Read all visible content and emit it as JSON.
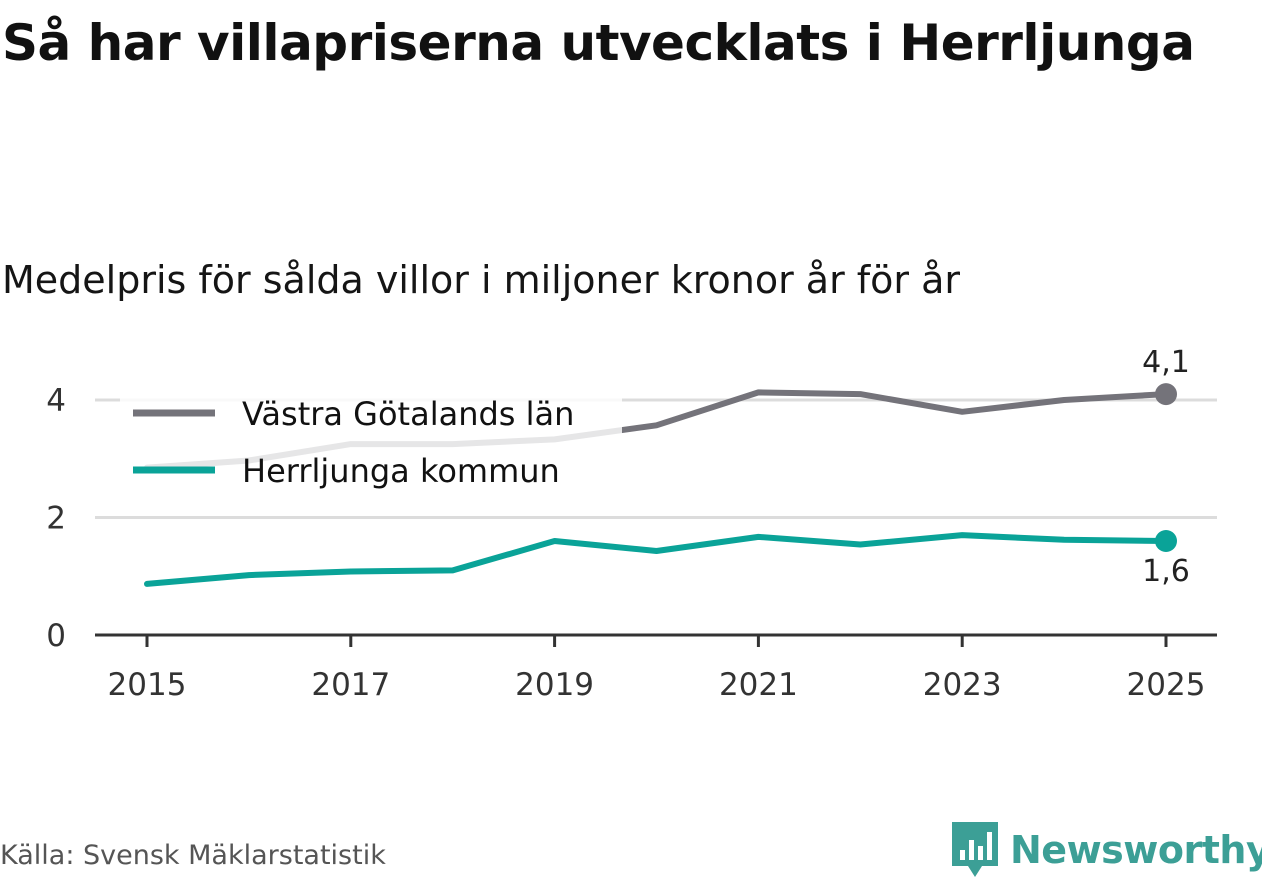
{
  "title": "Så har villapriserna utvecklats i Herrljunga",
  "subtitle": "Medelpris för sålda villor i miljoner kronor år för år",
  "source": "Källa: Svensk Mäklarstatistik",
  "brand": {
    "name": "Newsworthy",
    "icon": "newsworthy-logo-icon",
    "color": "#3c9f96"
  },
  "chart_data": {
    "type": "line",
    "title": "Så har villapriserna utvecklats i Herrljunga",
    "subtitle": "Medelpris för sålda villor i miljoner kronor år för år",
    "xlabel": "",
    "ylabel": "",
    "x": [
      2015,
      2016,
      2017,
      2018,
      2019,
      2020,
      2021,
      2022,
      2023,
      2024,
      2025
    ],
    "x_ticks": [
      "2015",
      "2017",
      "2019",
      "2021",
      "2023",
      "2025"
    ],
    "y_ticks": [
      "0",
      "2",
      "4"
    ],
    "ylim": [
      0,
      4.6
    ],
    "grid": true,
    "legend_position": "top-left",
    "series": [
      {
        "name": "Västra Götalands län",
        "color": "#74737a",
        "values": [
          2.85,
          2.97,
          3.25,
          3.25,
          3.33,
          3.57,
          4.13,
          4.1,
          3.8,
          4.0,
          4.1
        ],
        "end_label": "4,1"
      },
      {
        "name": "Herrljunga kommun",
        "color": "#0aa398",
        "values": [
          0.87,
          1.02,
          1.08,
          1.1,
          1.6,
          1.43,
          1.67,
          1.54,
          1.7,
          1.62,
          1.6
        ],
        "end_label": "1,6"
      }
    ]
  }
}
